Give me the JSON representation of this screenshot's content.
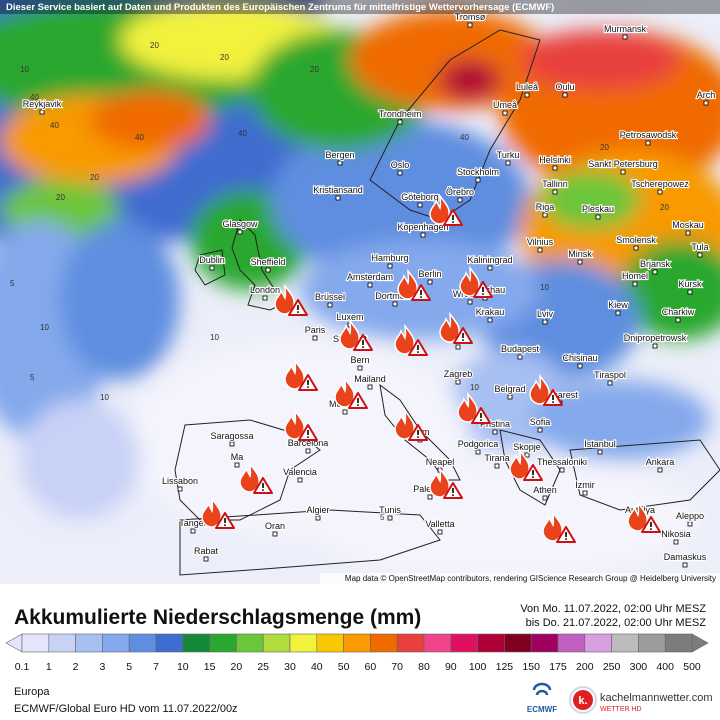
{
  "header": {
    "notice": "Dieser Service basiert auf Daten und Produkten des Europäischen Zentrums für mittelfristige Wettervorhersage (ECMWF)"
  },
  "map": {
    "attribution": "Map data © OpenStreetMap contributors, rendering GIScience Research Group @ Heidelberg University",
    "cities": [
      "Tromsø",
      "Murmansk",
      "Reykjavik",
      "Luleå",
      "Oulu",
      "Umeå",
      "Arch",
      "Trondheim",
      "Petrosawodsk",
      "Bergen",
      "Turku",
      "Helsinki",
      "Sankt Petersburg",
      "Oslo",
      "Stockholm",
      "Tscherepowez",
      "Tallinn",
      "Kristiansand",
      "Göteborg",
      "Örebro",
      "Riga",
      "Pleskau",
      "Glasgow",
      "Smolensk",
      "Moskau",
      "Kopenhagen",
      "Vilnius",
      "Minsk",
      "Tula",
      "Dublin",
      "Sheffield",
      "Hamburg",
      "Berlin",
      "Kaliningrad",
      "Brjansk",
      "Amsterdam",
      "Warschau",
      "Homel",
      "Kursk",
      "London",
      "Brüssel",
      "Dortmund",
      "Wrocław",
      "Kiew",
      "Charkiw",
      "Paris",
      "Luxem",
      "Stuttgart",
      "Krakau",
      "Lviv",
      "Dnipropetrowsk",
      "Wien",
      "Budapest",
      "Chisinau",
      "Bern",
      "Tiraspol",
      "Mailand",
      "Zagreb",
      "Belgrad",
      "Bukarest",
      "Monaco",
      "Saragossa",
      "Barcelona",
      "Rom",
      "Pristina",
      "Sofia",
      "Podgorica",
      "Istanbul",
      "Ma",
      "Valencia",
      "Skopje",
      "Tirana",
      "Thessaloniki",
      "Ankara",
      "Lissabon",
      "Neapel",
      "Athen",
      "Izmir",
      "Palermo",
      "Antalya",
      "Algier",
      "Tunis",
      "Tanger",
      "Oran",
      "Valletta",
      "Nikosia",
      "Aleppo",
      "Rabat",
      "Damaskus"
    ],
    "contour_labels": [
      "20",
      "20",
      "10",
      "40",
      "40",
      "40",
      "20",
      "5",
      "10",
      "20",
      "5",
      "10",
      "40",
      "20",
      "20",
      "10",
      "5",
      "10",
      "5",
      "10",
      "20",
      "40"
    ]
  },
  "legend": {
    "title": "Akkumulierte Niederschlagsmenge (mm)",
    "period_from": "Von Mo. 11.07.2022, 02:00 Uhr MESZ",
    "period_to": "bis Do. 21.07.2022, 02:00 Uhr MESZ",
    "values": [
      "0.1",
      "1",
      "2",
      "3",
      "5",
      "7",
      "10",
      "15",
      "20",
      "25",
      "30",
      "40",
      "50",
      "60",
      "70",
      "80",
      "90",
      "100",
      "125",
      "150",
      "175",
      "200",
      "250",
      "300",
      "400",
      "500"
    ],
    "colors": [
      "#e4e4fa",
      "#c8d2f6",
      "#a8bff2",
      "#84a9ec",
      "#5f8ee0",
      "#3f6cd0",
      "#16883a",
      "#2aa72e",
      "#6cc63a",
      "#b0dc3c",
      "#f2f23c",
      "#f8c800",
      "#f89a00",
      "#f06a00",
      "#e8403c",
      "#f0448c",
      "#e01060",
      "#b00038",
      "#800020",
      "#a00060",
      "#c060c0",
      "#d8a0e0",
      "#bcbcbc",
      "#9c9c9c",
      "#7c7c7c"
    ]
  },
  "footer": {
    "region": "Europa",
    "model": "ECMWF/Global Euro HD vom  11.07.2022/00z",
    "ecmwf": "ECMWF",
    "logo_letter": "k.",
    "site": "kachelmannwetter.com",
    "site_sub": "WETTER HD"
  }
}
